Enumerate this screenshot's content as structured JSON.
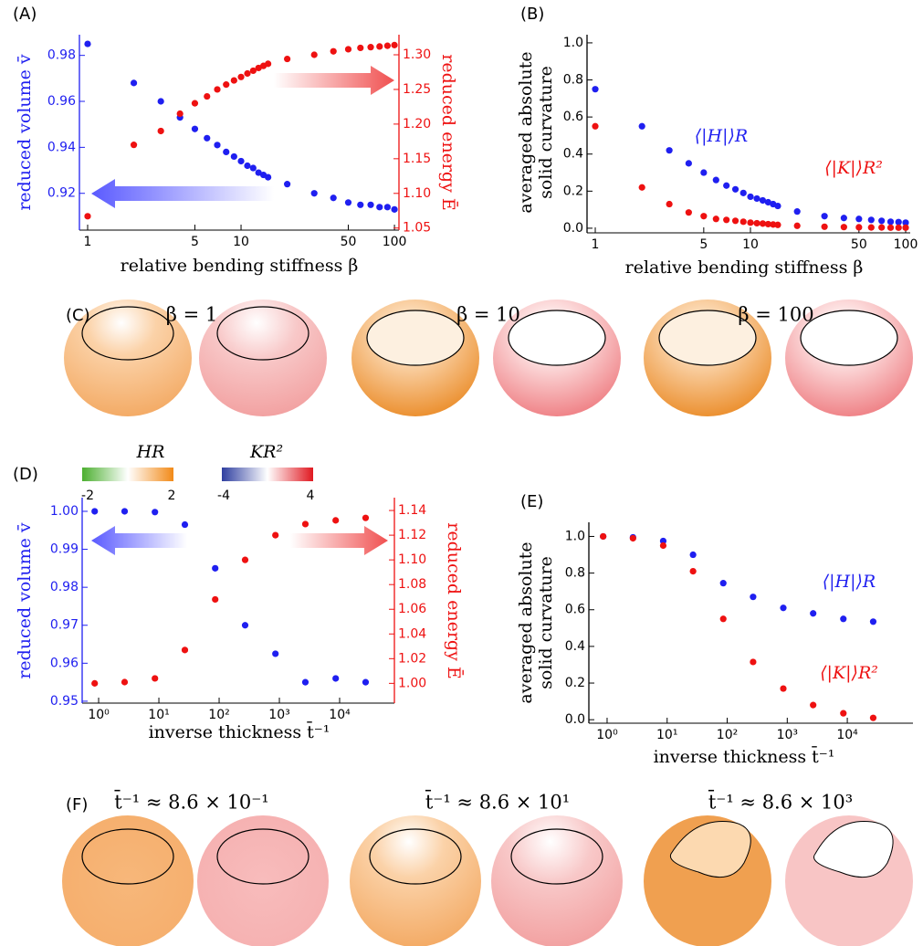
{
  "chart_data": [
    {
      "type": "scatter",
      "panel_label": "(A)",
      "xlabel": "relative bending stiffness β",
      "ylabel": "reduced volume v̄",
      "y2label": "reduced energy Ē",
      "xscale": "log",
      "x": [
        1,
        2,
        3,
        4,
        5,
        6,
        7,
        8,
        9,
        10,
        11,
        12,
        13,
        14,
        15,
        20,
        30,
        40,
        50,
        60,
        70,
        80,
        90,
        100
      ],
      "xlim": [
        0.884,
        107
      ],
      "xticks": [
        1,
        5,
        10,
        50,
        100
      ],
      "ylim": [
        0.904,
        0.989
      ],
      "yticks": [
        0.92,
        0.94,
        0.96,
        0.98
      ],
      "y2lim": [
        1.047,
        1.329
      ],
      "y2ticks": [
        1.05,
        {
          "value": 1.1,
          "label": "1.10"
        },
        1.15,
        {
          "value": 1.2,
          "label": "1.20"
        },
        1.25,
        {
          "value": 1.3,
          "label": "1.30"
        }
      ],
      "series": [
        {
          "color": "#1f1ff0",
          "values": [
            0.985,
            0.968,
            0.96,
            0.953,
            0.948,
            0.944,
            0.941,
            0.938,
            0.936,
            0.934,
            0.932,
            0.931,
            0.929,
            0.928,
            0.927,
            0.924,
            0.92,
            0.918,
            0.916,
            0.915,
            0.915,
            0.914,
            0.914,
            0.913
          ]
        },
        {
          "color": "#ee1111",
          "axis": "y2",
          "values": [
            1.067,
            1.17,
            1.19,
            1.215,
            1.23,
            1.24,
            1.25,
            1.257,
            1.263,
            1.268,
            1.273,
            1.277,
            1.281,
            1.284,
            1.287,
            1.294,
            1.3,
            1.305,
            1.308,
            1.31,
            1.311,
            1.312,
            1.313,
            1.314
          ]
        }
      ]
    },
    {
      "type": "scatter",
      "panel_label": "(B)",
      "xlabel": "relative bending stiffness β",
      "ylabel": [
        "averaged absolute",
        "solid curvature"
      ],
      "xscale": "log",
      "x": [
        1,
        2,
        3,
        4,
        5,
        6,
        7,
        8,
        9,
        10,
        11,
        12,
        13,
        14,
        15,
        20,
        30,
        40,
        50,
        60,
        70,
        80,
        90,
        100
      ],
      "xlim": [
        0.885,
        107
      ],
      "xticks": [
        1,
        5,
        10,
        50,
        100
      ],
      "ylim": [
        -0.025,
        1.044
      ],
      "yticks": [
        {
          "value": 0,
          "label": "0.0"
        },
        0.2,
        0.4,
        0.6,
        0.8,
        {
          "value": 1,
          "label": "1.0"
        }
      ],
      "series": [
        {
          "name": "⟨|H|⟩R",
          "color": "#1f1ff0",
          "values": [
            0.75,
            0.55,
            0.42,
            0.35,
            0.3,
            0.26,
            0.23,
            0.21,
            0.19,
            0.17,
            0.16,
            0.15,
            0.14,
            0.13,
            0.12,
            0.09,
            0.065,
            0.055,
            0.05,
            0.045,
            0.04,
            0.035,
            0.033,
            0.03
          ]
        },
        {
          "name": "⟨|K|⟩R²",
          "color": "#ee1111",
          "values": [
            0.55,
            0.22,
            0.13,
            0.085,
            0.065,
            0.05,
            0.045,
            0.04,
            0.035,
            0.03,
            0.027,
            0.025,
            0.022,
            0.02,
            0.018,
            0.013,
            0.008,
            0.006,
            0.005,
            0.004,
            0.004,
            0.003,
            0.003,
            0.003
          ]
        }
      ]
    },
    {
      "type": "scatter",
      "panel_label": "(D)",
      "xlabel": "inverse thickness t̄⁻¹",
      "ylabel": "reduced volume v̄",
      "y2label": "reduced energy Ē",
      "xscale": "log",
      "x": [
        0.86,
        2.7,
        8.6,
        27,
        86,
        270,
        860,
        2700,
        8600,
        27000
      ],
      "xlim": [
        0.533,
        81100
      ],
      "xticks": [
        {
          "value": 1,
          "label": "10⁰"
        },
        {
          "value": 10,
          "label": "10¹"
        },
        {
          "value": 100,
          "label": "10²"
        },
        {
          "value": 1000,
          "label": "10³"
        },
        {
          "value": 10000,
          "label": "10⁴"
        }
      ],
      "ylim": [
        0.9495,
        1.0036
      ],
      "yticks": [
        0.95,
        0.96,
        0.97,
        0.98,
        0.99,
        {
          "value": 1,
          "label": "1.00"
        }
      ],
      "y2lim": [
        0.984,
        1.1504
      ],
      "y2ticks": [
        {
          "value": 1,
          "label": "1.00"
        },
        1.02,
        1.04,
        1.06,
        1.08,
        {
          "value": 1.1,
          "label": "1.10"
        },
        1.12,
        1.14
      ],
      "series": [
        {
          "color": "#1f1ff0",
          "values": [
            1.0,
            1.0,
            0.9998,
            0.9965,
            0.985,
            0.97,
            0.9625,
            0.955,
            0.956,
            0.955
          ]
        },
        {
          "color": "#ee1111",
          "axis": "y2",
          "values": [
            1.0,
            1.001,
            1.004,
            1.027,
            1.068,
            1.1,
            1.12,
            1.129,
            1.132,
            1.134
          ]
        }
      ]
    },
    {
      "type": "scatter",
      "panel_label": "(E)",
      "xlabel": "inverse thickness t̄⁻¹",
      "ylabel": [
        "averaged absolute",
        "solid curvature"
      ],
      "xscale": "log",
      "x": [
        0.86,
        2.7,
        8.6,
        27,
        86,
        270,
        860,
        2700,
        8600,
        27000
      ],
      "xlim": [
        0.497,
        124000
      ],
      "xticks": [
        {
          "value": 1,
          "label": "10⁰"
        },
        {
          "value": 10,
          "label": "10¹"
        },
        {
          "value": 100,
          "label": "10²"
        },
        {
          "value": 1000,
          "label": "10³"
        },
        {
          "value": 10000,
          "label": "10⁴"
        }
      ],
      "ylim": [
        -0.019,
        1.077
      ],
      "yticks": [
        {
          "value": 0,
          "label": "0.0"
        },
        0.2,
        0.4,
        0.6,
        0.8,
        {
          "value": 1,
          "label": "1.0"
        }
      ],
      "series": [
        {
          "name": "⟨|H|⟩R",
          "color": "#1f1ff0",
          "values": [
            1.0,
            0.995,
            0.975,
            0.9,
            0.745,
            0.67,
            0.61,
            0.58,
            0.55,
            0.535
          ]
        },
        {
          "name": "⟨|K|⟩R²",
          "color": "#ee1111",
          "values": [
            1.0,
            0.99,
            0.95,
            0.81,
            0.55,
            0.315,
            0.17,
            0.08,
            0.035,
            0.01
          ]
        }
      ]
    }
  ],
  "panel_c": {
    "label": "(C)",
    "captions": [
      "β = 1",
      "β = 10",
      "β = 100"
    ]
  },
  "colorbars": [
    {
      "label": "HR",
      "min": -2,
      "max": 2
    },
    {
      "label": "KR²",
      "min": -4,
      "max": 4
    }
  ],
  "panel_f": {
    "label": "(F)",
    "captions": [
      "t̄⁻¹ ≈ 8.6 × 10⁻¹",
      "t̄⁻¹ ≈ 8.6 × 10¹",
      "t̄⁻¹ ≈ 8.6 × 10³"
    ]
  }
}
